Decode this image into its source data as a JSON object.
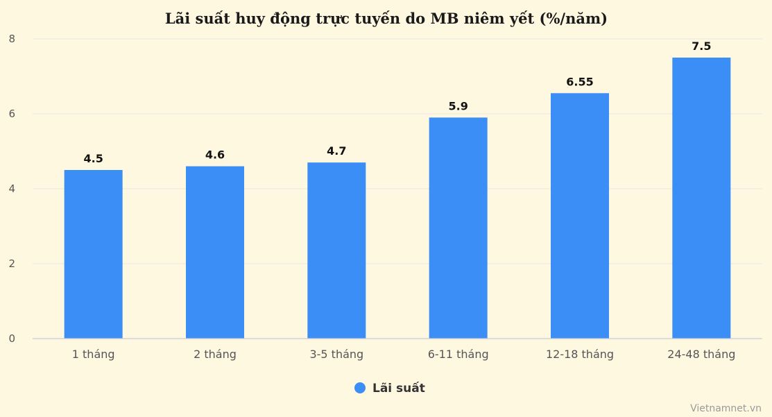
{
  "chart_data": {
    "type": "bar",
    "title": "Lãi suất huy động trực tuyến do MB niêm yết (%/năm)",
    "categories": [
      "1 tháng",
      "2 tháng",
      "3-5 tháng",
      "6-11 tháng",
      "12-18 tháng",
      "24-48 tháng"
    ],
    "series": [
      {
        "name": "Lãi suất",
        "values": [
          4.5,
          4.6,
          4.7,
          5.9,
          6.55,
          7.5
        ],
        "labels": [
          "4.5",
          "4.6",
          "4.7",
          "5.9",
          "6.55",
          "7.5"
        ]
      }
    ],
    "ylim": [
      0,
      8
    ],
    "yticks": [
      "0",
      "2",
      "4",
      "6",
      "8"
    ],
    "grid": true,
    "legend_position": "bottom-center",
    "bar_color": "#3a8ef6",
    "credit": "Vietnamnet.vn"
  }
}
